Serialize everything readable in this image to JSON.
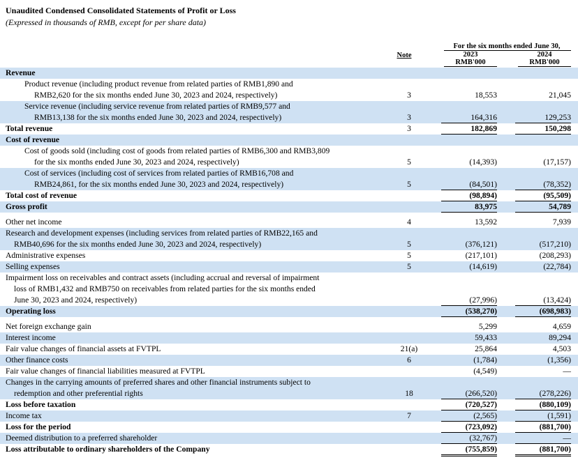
{
  "title": "Unaudited Condensed Consolidated Statements of Profit or Loss",
  "subtitle": "(Expressed in thousands of RMB, except for per share data)",
  "header": {
    "note": "Note",
    "period": "For the six months ended June 30,",
    "year1": "2023",
    "year2": "2024",
    "unit1": "RMB'000",
    "unit2": "RMB'000"
  },
  "rows": [
    {
      "lines": [
        "Revenue"
      ],
      "bold": true,
      "shade": true
    },
    {
      "lines": [
        "Product revenue (including product revenue from related parties of RMB1,890 and",
        "RMB2,620 for the six months ended June 30, 2023 and 2024, respectively)"
      ],
      "indent": 1,
      "note": "3",
      "v1": "18,553",
      "v2": "21,045"
    },
    {
      "lines": [
        "Service revenue (including service revenue from related parties of RMB9,577 and",
        "RMB13,138 for the six months ended June 30, 2023 and 2024, respectively)"
      ],
      "indent": 1,
      "shade": true,
      "note": "3",
      "v1": "164,316",
      "v2": "129,253"
    },
    {
      "lines": [
        "Total revenue"
      ],
      "bold": true,
      "note": "3",
      "v1": "182,869",
      "v2": "150,298"
    },
    {
      "lines": [
        "Cost of revenue"
      ],
      "bold": true,
      "shade": true
    },
    {
      "lines": [
        "Cost of goods sold (including cost of goods from related parties of RMB6,300 and RMB3,809",
        "for the six months ended June 30, 2023 and 2024, respectively)"
      ],
      "indent": 1,
      "note": "5",
      "v1": "(14,393)",
      "v2": "(17,157)"
    },
    {
      "lines": [
        "Cost of services (including cost of services from related parties of RMB16,708 and",
        "RMB24,861, for the six months ended June 30, 2023 and 2024, respectively)"
      ],
      "indent": 1,
      "shade": true,
      "note": "5",
      "v1": "(84,501)",
      "v2": "(78,352)"
    },
    {
      "lines": [
        "Total cost of revenue"
      ],
      "bold": true,
      "v1": "(98,894)",
      "v2": "(95,509)"
    },
    {
      "lines": [
        "Gross profit"
      ],
      "bold": true,
      "shade": true,
      "v1": "83,975",
      "v2": "54,789"
    },
    {
      "lines": [
        "Other net income"
      ],
      "note": "4",
      "v1": "13,592",
      "v2": "7,939"
    },
    {
      "lines": [
        "Research and development expenses (including services from related parties of RMB22,165 and",
        "RMB40,696 for the six months ended June 30, 2023 and 2024, respectively)"
      ],
      "indent": 3,
      "shade": true,
      "note": "5",
      "v1": "(376,121)",
      "v2": "(517,210)"
    },
    {
      "lines": [
        "Administrative expenses"
      ],
      "note": "5",
      "v1": "(217,101)",
      "v2": "(208,293)"
    },
    {
      "lines": [
        "Selling expenses"
      ],
      "shade": true,
      "note": "5",
      "v1": "(14,619)",
      "v2": "(22,784)"
    },
    {
      "lines": [
        "Impairment loss on receivables and contract assets (including accrual and reversal of impairment",
        "loss of RMB1,432 and RMB750 on receivables from related parties for the six months ended",
        "June 30, 2023 and 2024, respectively)"
      ],
      "indent": 3,
      "v1": "(27,996)",
      "v2": "(13,424)"
    },
    {
      "lines": [
        "Operating loss"
      ],
      "bold": true,
      "shade": true,
      "v1": "(538,270)",
      "v2": "(698,983)"
    },
    {
      "lines": [
        "Net foreign exchange gain"
      ],
      "v1": "5,299",
      "v2": "4,659"
    },
    {
      "lines": [
        "Interest income"
      ],
      "shade": true,
      "v1": "59,433",
      "v2": "89,294"
    },
    {
      "lines": [
        "Fair value changes of financial assets at FVTPL"
      ],
      "note": "21(a)",
      "v1": "25,864",
      "v2": "4,503"
    },
    {
      "lines": [
        "Other finance costs"
      ],
      "shade": true,
      "note": "6",
      "v1": "(1,784)",
      "v2": "(1,356)"
    },
    {
      "lines": [
        "Fair value changes of financial liabilities measured at FVTPL"
      ],
      "v1": "(4,549)",
      "v2": "—"
    },
    {
      "lines": [
        "Changes in the carrying amounts of preferred shares and other financial instruments subject to",
        "redemption and other preferential rights"
      ],
      "indent": 3,
      "shade": true,
      "note": "18",
      "v1": "(266,520)",
      "v2": "(278,226)"
    },
    {
      "lines": [
        "Loss before taxation"
      ],
      "bold": true,
      "v1": "(720,527)",
      "v2": "(880,109)"
    },
    {
      "lines": [
        "Income tax"
      ],
      "shade": true,
      "note": "7",
      "v1": "(2,565)",
      "v2": "(1,591)"
    },
    {
      "lines": [
        "Loss for the period"
      ],
      "bold": true,
      "v1": "(723,092)",
      "v2": "(881,700)"
    },
    {
      "lines": [
        "Deemed distribution to a preferred shareholder"
      ],
      "shade": true,
      "v1": "(32,767)",
      "v2": "—"
    },
    {
      "lines": [
        "Loss attributable to ordinary shareholders of the Company"
      ],
      "bold": true,
      "v1": "(755,859)",
      "v2": "(881,700)"
    }
  ]
}
